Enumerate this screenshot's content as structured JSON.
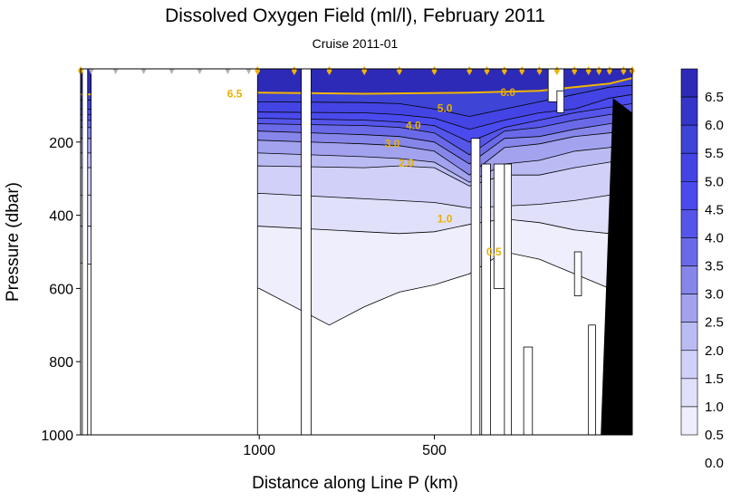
{
  "chart_data": {
    "type": "contour",
    "title": "Dissolved Oxygen Field  (ml/l),  February 2011",
    "subtitle": "Cruise 2011-01",
    "xlabel": "Distance along Line P  (km)",
    "ylabel": "Pressure  (dbar)",
    "xlim": [
      1510,
      -65
    ],
    "ylim": [
      1000,
      0
    ],
    "x_ticks": [
      {
        "value": 1000,
        "label": "1000"
      },
      {
        "value": 500,
        "label": "500"
      }
    ],
    "y_ticks": [
      {
        "value": 200,
        "label": "200"
      },
      {
        "value": 400,
        "label": "400"
      },
      {
        "value": 600,
        "label": "600"
      },
      {
        "value": 800,
        "label": "800"
      },
      {
        "value": 1000,
        "label": "1000"
      }
    ],
    "colorbar": {
      "levels": [
        "6.5",
        "6.0",
        "5.5",
        "5.0",
        "4.5",
        "4.0",
        "3.5",
        "3.0",
        "2.5",
        "2.0",
        "1.5",
        "1.0",
        "0.5",
        "0.0"
      ],
      "colors": [
        "#2d2ab8",
        "#3535c8",
        "#3d44d6",
        "#4444e4",
        "#4a4aee",
        "#5555ea",
        "#6a6ae8",
        "#8686ea",
        "#a2a2ef",
        "#bbbbf4",
        "#d0d0f8",
        "#e0e0fb",
        "#eeeefd",
        "#ffffff"
      ]
    },
    "contour_labels": [
      {
        "text": "6.5",
        "x": 1070,
        "y": 68
      },
      {
        "text": "6.0",
        "x": 290,
        "y": 64
      },
      {
        "text": "5.0",
        "x": 470,
        "y": 108
      },
      {
        "text": "4.0",
        "x": 560,
        "y": 155
      },
      {
        "text": "3.0",
        "x": 620,
        "y": 204
      },
      {
        "text": "2.0",
        "x": 580,
        "y": 258
      },
      {
        "text": "1.0",
        "x": 470,
        "y": 410
      },
      {
        "text": "0.5",
        "x": 330,
        "y": 500
      }
    ],
    "contour_lines": [
      {
        "level": 6.5,
        "x": [
          1510,
          1000,
          700,
          400,
          200,
          0,
          -65
        ],
        "y": [
          70,
          65,
          68,
          65,
          60,
          40,
          25
        ]
      },
      {
        "level": 5.5,
        "x": [
          1510,
          1000,
          700,
          600,
          500,
          400,
          300,
          200,
          100,
          0,
          -65
        ],
        "y": [
          85,
          90,
          92,
          95,
          110,
          130,
          110,
          90,
          70,
          50,
          45
        ]
      },
      {
        "level": 5.0,
        "x": [
          1510,
          1000,
          700,
          600,
          500,
          400,
          300,
          200,
          100,
          0,
          -65
        ],
        "y": [
          110,
          118,
          120,
          125,
          135,
          165,
          140,
          120,
          110,
          80,
          70
        ]
      },
      {
        "level": 4.5,
        "x": [
          1510,
          1000,
          700,
          600,
          500,
          400,
          300,
          200,
          100,
          0,
          -65
        ],
        "y": [
          125,
          135,
          140,
          145,
          155,
          200,
          160,
          140,
          120,
          105,
          95
        ]
      },
      {
        "level": 4.0,
        "x": [
          1510,
          1000,
          700,
          600,
          500,
          400,
          300,
          200,
          100,
          0,
          -65
        ],
        "y": [
          140,
          150,
          155,
          160,
          175,
          235,
          170,
          160,
          140,
          125,
          120
        ]
      },
      {
        "level": 3.5,
        "x": [
          1510,
          1000,
          700,
          600,
          500,
          400,
          300,
          200,
          100,
          0,
          -65
        ],
        "y": [
          160,
          170,
          180,
          185,
          200,
          260,
          190,
          185,
          165,
          150,
          140
        ]
      },
      {
        "level": 3.0,
        "x": [
          1510,
          1000,
          700,
          600,
          500,
          400,
          300,
          200,
          100,
          0,
          -65
        ],
        "y": [
          190,
          195,
          205,
          210,
          225,
          290,
          215,
          205,
          185,
          175,
          165
        ]
      },
      {
        "level": 2.5,
        "x": [
          1510,
          1000,
          700,
          600,
          500,
          400,
          300,
          200,
          100,
          0,
          -65
        ],
        "y": [
          230,
          230,
          240,
          245,
          255,
          310,
          260,
          250,
          225,
          215,
          200
        ]
      },
      {
        "level": 2.0,
        "x": [
          1510,
          1000,
          700,
          600,
          500,
          400,
          300,
          200,
          100,
          0,
          -65
        ],
        "y": [
          270,
          265,
          270,
          265,
          270,
          320,
          290,
          290,
          270,
          255,
          240
        ]
      },
      {
        "level": 1.5,
        "x": [
          1510,
          1000,
          700,
          600,
          500,
          400,
          300,
          200,
          100,
          0,
          -65
        ],
        "y": [
          345,
          340,
          355,
          360,
          365,
          380,
          375,
          370,
          360,
          345,
          330
        ]
      },
      {
        "level": 1.0,
        "x": [
          1510,
          1000,
          700,
          600,
          500,
          400,
          300,
          200,
          100,
          0,
          -65
        ],
        "y": [
          430,
          430,
          445,
          450,
          445,
          425,
          410,
          420,
          440,
          450,
          460
        ]
      },
      {
        "level": 0.5,
        "x": [
          1510,
          1300,
          1000,
          800,
          700,
          600,
          500,
          400,
          300,
          200,
          100,
          0,
          -65
        ],
        "y": [
          530,
          560,
          600,
          700,
          650,
          610,
          590,
          560,
          500,
          520,
          560,
          600,
          620
        ]
      }
    ],
    "station_markers_gold_km": [
      1510,
      1005,
      900,
      800,
      700,
      600,
      500,
      400,
      350,
      300,
      250,
      200,
      150,
      100,
      60,
      30,
      0,
      -40,
      -65
    ],
    "station_markers_gray_km": [
      1480,
      1410,
      1330,
      1250,
      1170,
      1090,
      1030
    ],
    "grid": false,
    "legend": "right"
  }
}
